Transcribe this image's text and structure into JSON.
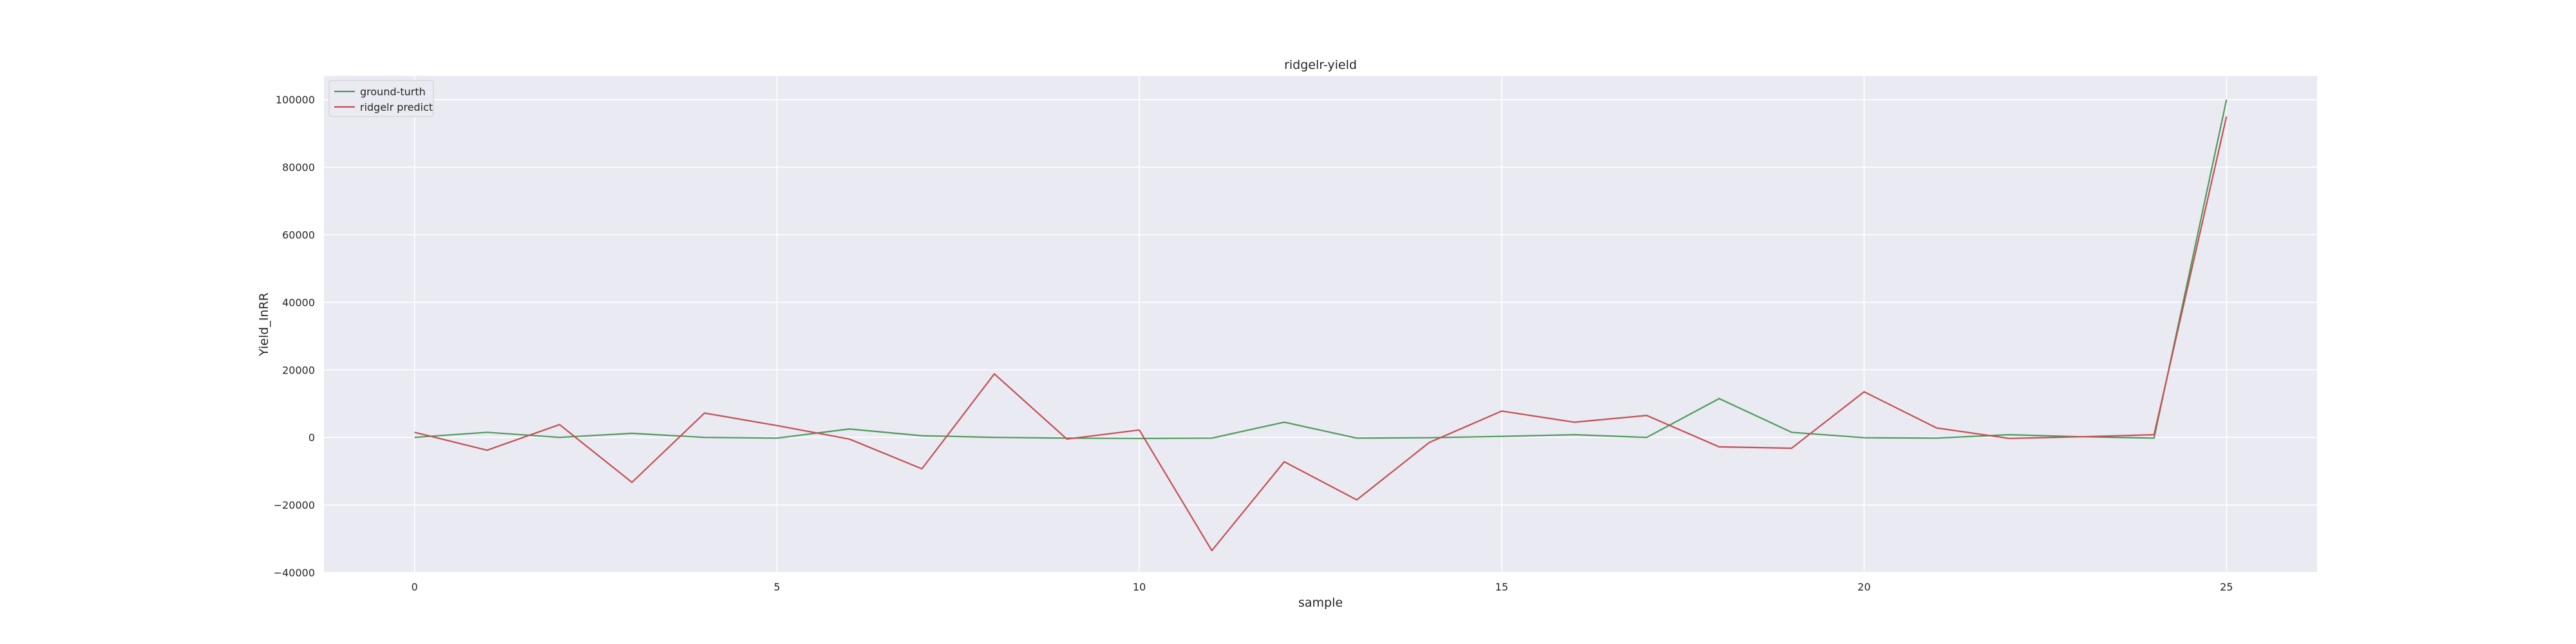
{
  "chart_data": {
    "type": "line",
    "title": "ridgelr-yield",
    "xlabel": "sample",
    "ylabel": "Yield_InRR",
    "x": [
      0,
      1,
      2,
      3,
      4,
      5,
      6,
      7,
      8,
      9,
      10,
      11,
      12,
      13,
      14,
      15,
      16,
      17,
      18,
      19,
      20,
      21,
      22,
      23,
      24,
      25
    ],
    "xlim": [
      -1.25,
      26.25
    ],
    "ylim": [
      -40000,
      107000
    ],
    "xticks": [
      0,
      5,
      10,
      15,
      20,
      25
    ],
    "yticks": [
      -40000,
      -20000,
      0,
      20000,
      40000,
      60000,
      80000,
      100000
    ],
    "grid": true,
    "legend_position": "top-left",
    "background": "#eaeaf2",
    "series": [
      {
        "name": "ground-turth",
        "color": "#4c9a5a",
        "values": [
          0,
          1500,
          0,
          1200,
          0,
          -200,
          2500,
          500,
          0,
          -200,
          -300,
          -200,
          4500,
          -200,
          -100,
          300,
          800,
          0,
          11500,
          1500,
          -100,
          -200,
          800,
          200,
          -200,
          100000
        ]
      },
      {
        "name": "ridgelr predict",
        "color": "#c44e52",
        "values": [
          1500,
          -3800,
          3800,
          -13300,
          7200,
          3500,
          -500,
          -9300,
          18800,
          -500,
          2200,
          -33500,
          -7200,
          -18500,
          -1500,
          7800,
          4500,
          6500,
          -2800,
          -3200,
          13500,
          2800,
          -300,
          200,
          800,
          95000
        ]
      }
    ]
  }
}
